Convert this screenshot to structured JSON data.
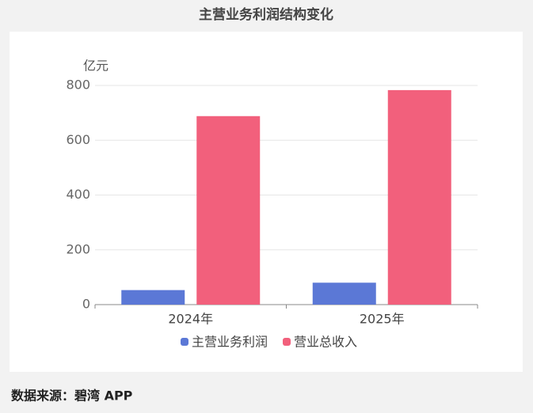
{
  "chart_data": {
    "type": "bar",
    "title": "主营业务利润结构变化",
    "y_label": "亿元",
    "categories": [
      "2024年",
      "2025年"
    ],
    "series": [
      {
        "name": "主营业务利润",
        "color": "#5b78d6",
        "values": [
          53,
          80
        ]
      },
      {
        "name": "营业总收入",
        "color": "#f2607c",
        "values": [
          688,
          783
        ]
      }
    ],
    "ylim": [
      0,
      800
    ],
    "yticks": [
      0,
      200,
      400,
      600,
      800
    ],
    "grid": true,
    "source": "数据来源：碧湾 APP"
  }
}
